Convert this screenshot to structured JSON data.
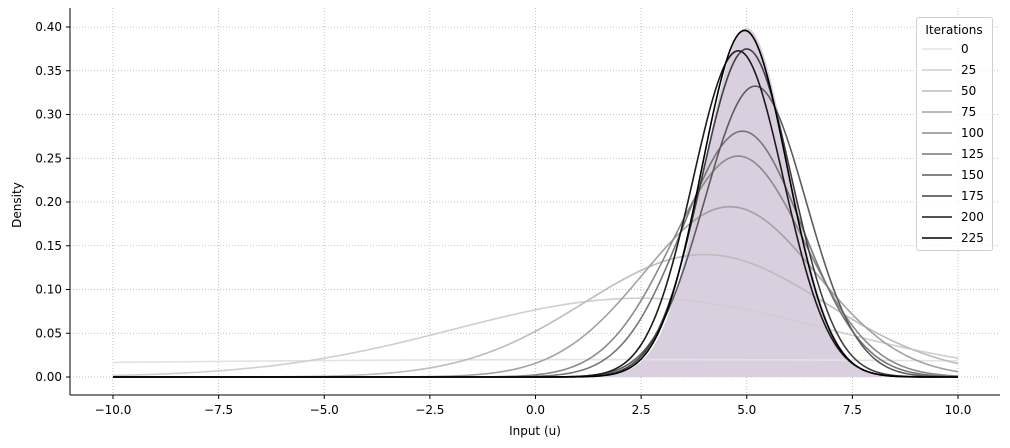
{
  "chart_data": {
    "type": "line",
    "title": "",
    "xlabel": "Input (u)",
    "ylabel": "Density",
    "xlim": [
      -11,
      11
    ],
    "ylim": [
      -0.02,
      0.42
    ],
    "grid": true,
    "x_ticks": [
      "−10.0",
      "−7.5",
      "−5.0",
      "−2.5",
      "0.0",
      "2.5",
      "5.0",
      "7.5",
      "10.0"
    ],
    "x_tick_values": [
      -10,
      -7.5,
      -5,
      -2.5,
      0,
      2.5,
      5,
      7.5,
      10
    ],
    "y_ticks": [
      "0.00",
      "0.05",
      "0.10",
      "0.15",
      "0.20",
      "0.25",
      "0.30",
      "0.35",
      "0.40"
    ],
    "y_tick_values": [
      0,
      0.05,
      0.1,
      0.15,
      0.2,
      0.25,
      0.3,
      0.35,
      0.4
    ],
    "x_range": [
      -10,
      10
    ],
    "target": {
      "mean": 5,
      "sd": 1,
      "fill": "#d9cfdf"
    },
    "legend": {
      "title": "Iterations",
      "placement": "top-right"
    },
    "series": [
      {
        "name": "0",
        "mean": 2.0,
        "sd": 20.0,
        "color": "#e2e2e2"
      },
      {
        "name": "25",
        "mean": 2.5,
        "sd": 4.43,
        "color": "#cfcfcf"
      },
      {
        "name": "50",
        "mean": 4.0,
        "sd": 2.85,
        "color": "#bcbcbc"
      },
      {
        "name": "75",
        "mean": 4.6,
        "sd": 2.05,
        "color": "#a2a2a2"
      },
      {
        "name": "100",
        "mean": 4.8,
        "sd": 1.58,
        "color": "#8a8a8a"
      },
      {
        "name": "125",
        "mean": 4.9,
        "sd": 1.42,
        "color": "#767676"
      },
      {
        "name": "150",
        "mean": 5.2,
        "sd": 1.2,
        "color": "#5c5c5c"
      },
      {
        "name": "175",
        "mean": 5.0,
        "sd": 1.064,
        "color": "#404040"
      },
      {
        "name": "200",
        "mean": 4.8,
        "sd": 1.07,
        "color": "#1c1c1c"
      },
      {
        "name": "225",
        "mean": 4.95,
        "sd": 1.007,
        "color": "#000000"
      }
    ]
  }
}
